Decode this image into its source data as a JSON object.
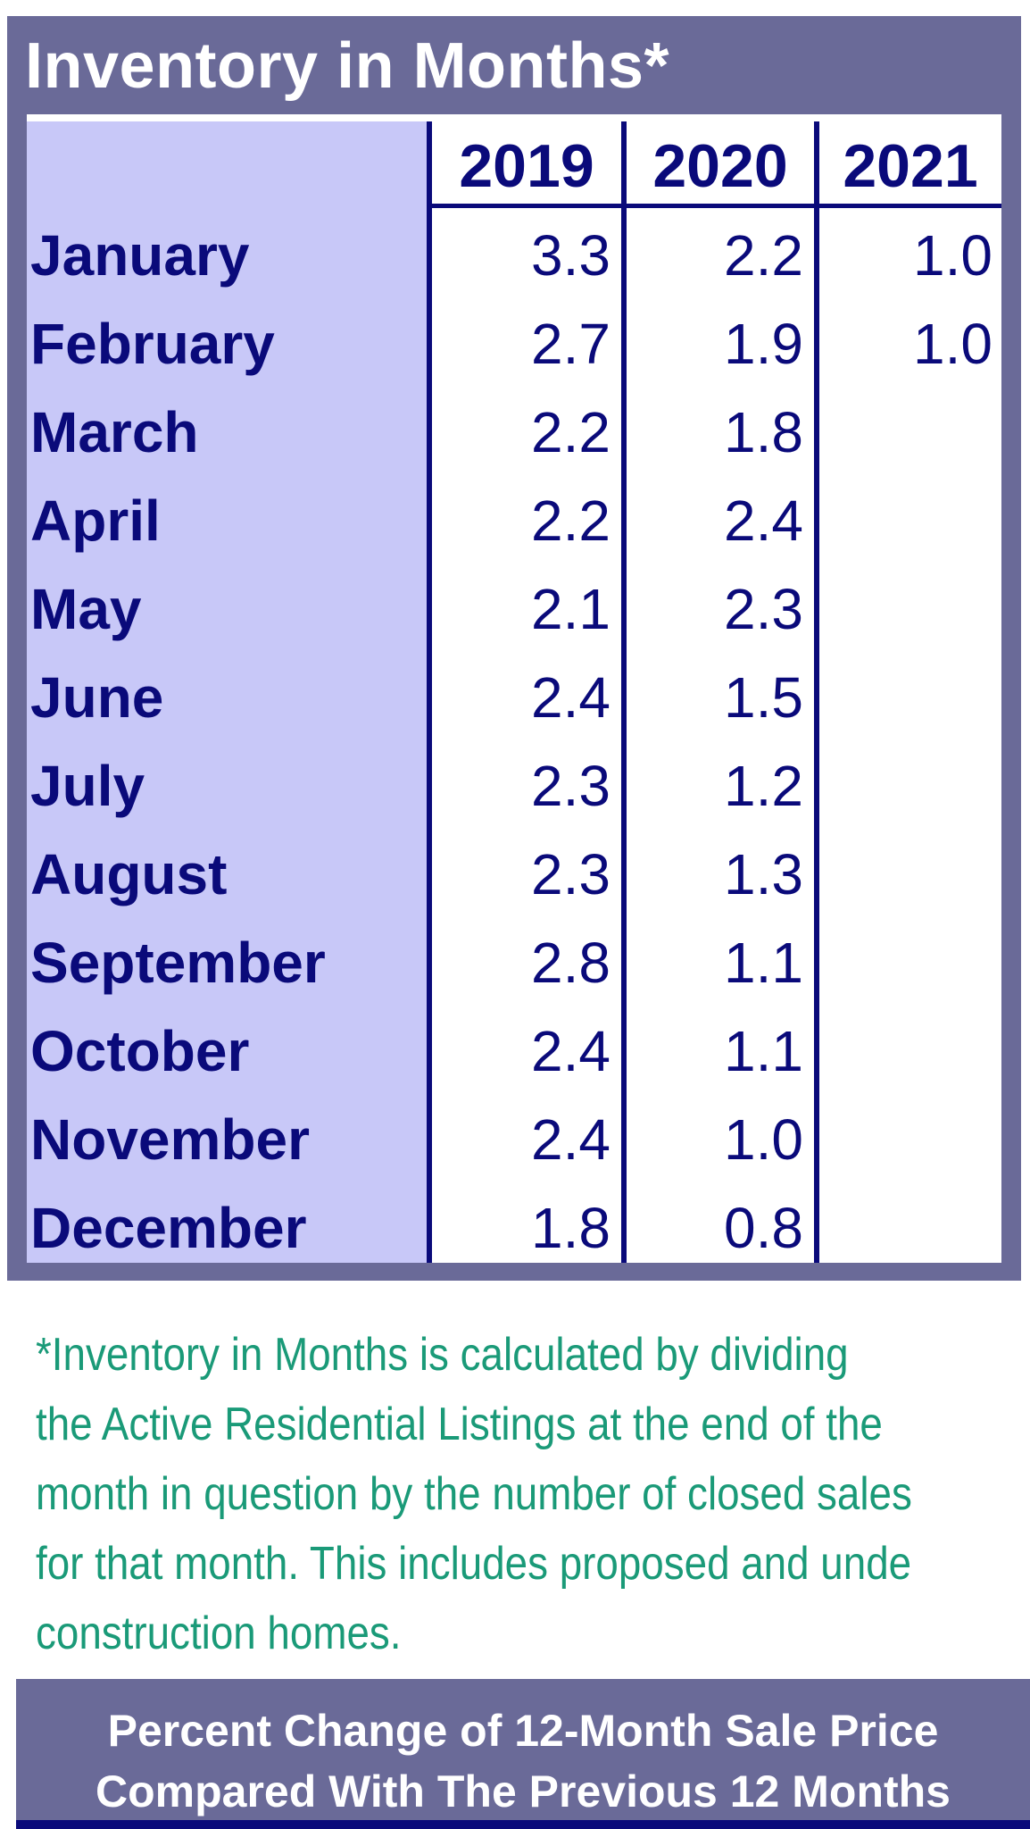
{
  "title": "Inventory in Months*",
  "years": [
    "2019",
    "2020",
    "2021"
  ],
  "rows": [
    {
      "month": "January",
      "values": [
        "3.3",
        "2.2",
        "1.0"
      ]
    },
    {
      "month": "February",
      "values": [
        "2.7",
        "1.9",
        "1.0"
      ]
    },
    {
      "month": "March",
      "values": [
        "2.2",
        "1.8",
        ""
      ]
    },
    {
      "month": "April",
      "values": [
        "2.2",
        "2.4",
        ""
      ]
    },
    {
      "month": "May",
      "values": [
        "2.1",
        "2.3",
        ""
      ]
    },
    {
      "month": "June",
      "values": [
        "2.4",
        "1.5",
        ""
      ]
    },
    {
      "month": "July",
      "values": [
        "2.3",
        "1.2",
        ""
      ]
    },
    {
      "month": "August",
      "values": [
        "2.3",
        "1.3",
        ""
      ]
    },
    {
      "month": "September",
      "values": [
        "2.8",
        "1.1",
        ""
      ]
    },
    {
      "month": "October",
      "values": [
        "2.4",
        "1.1",
        ""
      ]
    },
    {
      "month": "November",
      "values": [
        "2.4",
        "1.0",
        ""
      ]
    },
    {
      "month": "December",
      "values": [
        "1.8",
        "0.8",
        ""
      ]
    }
  ],
  "footnote": [
    "*Inventory in Months is calculated by dividing",
    "the Active Residential Listings at the end of the",
    "month in question by the number of closed sales",
    "for that month. This includes proposed and unde",
    "construction homes."
  ],
  "banner": [
    "Percent Change of 12-Month Sale Price",
    "Compared With The Previous 12 Months"
  ],
  "colors": {
    "panel": "#6a6a98",
    "navy": "#0a0a7a",
    "month_column": "#c8c8f8",
    "footnote_text": "#1a9a78"
  }
}
